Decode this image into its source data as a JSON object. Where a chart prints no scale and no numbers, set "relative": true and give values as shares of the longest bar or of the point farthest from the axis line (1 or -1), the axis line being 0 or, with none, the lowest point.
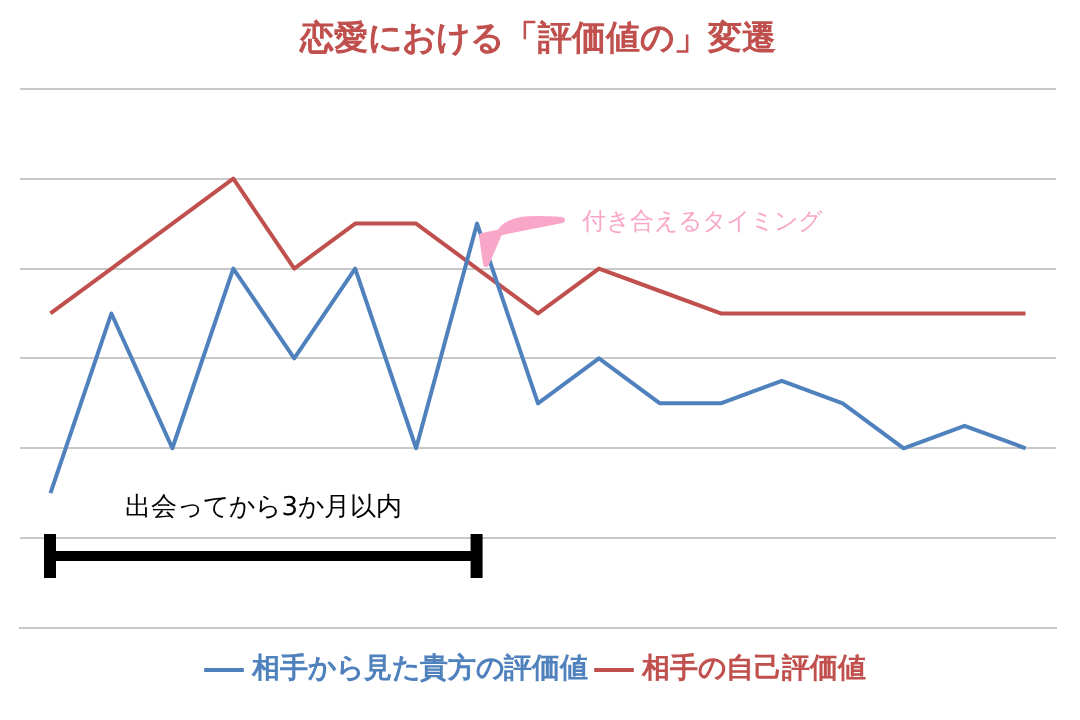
{
  "chart_data": {
    "type": "line",
    "title": "恋愛における「評価値の」変遷",
    "relative": true,
    "grid": "y",
    "legend": "bottom",
    "marker": "none",
    "categories": [
      null,
      null,
      null,
      null,
      null,
      null,
      null,
      null,
      null,
      null,
      null,
      null,
      null,
      null,
      null,
      null,
      null
    ],
    "series": [
      {
        "name": "相手から見た貴方の評価値",
        "color": "#4f81bd",
        "values": [
          0.3,
          0.7,
          0.4,
          0.8,
          0.6,
          0.8,
          0.4,
          0.9,
          0.5,
          0.6,
          0.5,
          0.5,
          0.55,
          0.5,
          0.4,
          0.45,
          0.4
        ]
      },
      {
        "name": "相手の自己評価値",
        "color": "#c0504d",
        "values": [
          0.7,
          0.8,
          0.9,
          1,
          0.8,
          0.9,
          0.9,
          0.8,
          0.7,
          0.8,
          0.75,
          0.7,
          0.7,
          0.7,
          0.7,
          0.7,
          0.7
        ]
      }
    ],
    "annotations": [
      "出会ってから3か月以内",
      "付き合えるタイミング"
    ]
  }
}
